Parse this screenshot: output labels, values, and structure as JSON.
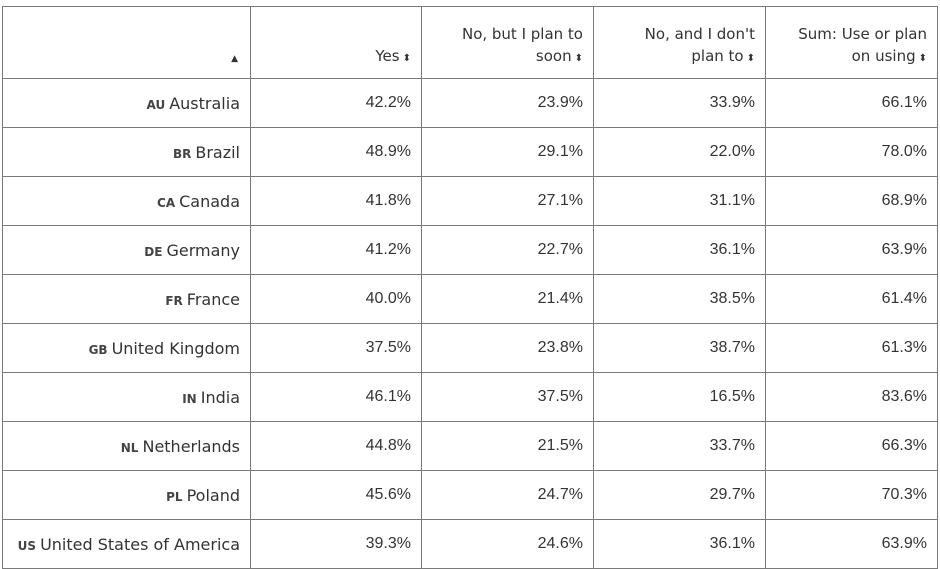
{
  "table": {
    "headers": [
      {
        "label": "",
        "sort_icon": "▲"
      },
      {
        "label": "Yes",
        "sort_icon": "⬍"
      },
      {
        "label_line1": "No, but I plan to",
        "label_line2": "soon",
        "sort_icon": "⬍"
      },
      {
        "label_line1": "No, and I don't",
        "label_line2": "plan to",
        "sort_icon": "⬍"
      },
      {
        "label_line1": "Sum: Use or plan",
        "label_line2": "on using",
        "sort_icon": "⬍"
      }
    ],
    "rows": [
      {
        "code": "AU",
        "country": "Australia",
        "yes": "42.2%",
        "plan_soon": "23.9%",
        "no_plan": "33.9%",
        "sum": "66.1%"
      },
      {
        "code": "BR",
        "country": "Brazil",
        "yes": "48.9%",
        "plan_soon": "29.1%",
        "no_plan": "22.0%",
        "sum": "78.0%"
      },
      {
        "code": "CA",
        "country": "Canada",
        "yes": "41.8%",
        "plan_soon": "27.1%",
        "no_plan": "31.1%",
        "sum": "68.9%"
      },
      {
        "code": "DE",
        "country": "Germany",
        "yes": "41.2%",
        "plan_soon": "22.7%",
        "no_plan": "36.1%",
        "sum": "63.9%"
      },
      {
        "code": "FR",
        "country": "France",
        "yes": "40.0%",
        "plan_soon": "21.4%",
        "no_plan": "38.5%",
        "sum": "61.4%"
      },
      {
        "code": "GB",
        "country": "United Kingdom",
        "yes": "37.5%",
        "plan_soon": "23.8%",
        "no_plan": "38.7%",
        "sum": "61.3%"
      },
      {
        "code": "IN",
        "country": "India",
        "yes": "46.1%",
        "plan_soon": "37.5%",
        "no_plan": "16.5%",
        "sum": "83.6%"
      },
      {
        "code": "NL",
        "country": "Netherlands",
        "yes": "44.8%",
        "plan_soon": "21.5%",
        "no_plan": "33.7%",
        "sum": "66.3%"
      },
      {
        "code": "PL",
        "country": "Poland",
        "yes": "45.6%",
        "plan_soon": "24.7%",
        "no_plan": "29.7%",
        "sum": "70.3%"
      },
      {
        "code": "US",
        "country": "United States of America",
        "yes": "39.3%",
        "plan_soon": "24.6%",
        "no_plan": "36.1%",
        "sum": "63.9%"
      }
    ]
  }
}
